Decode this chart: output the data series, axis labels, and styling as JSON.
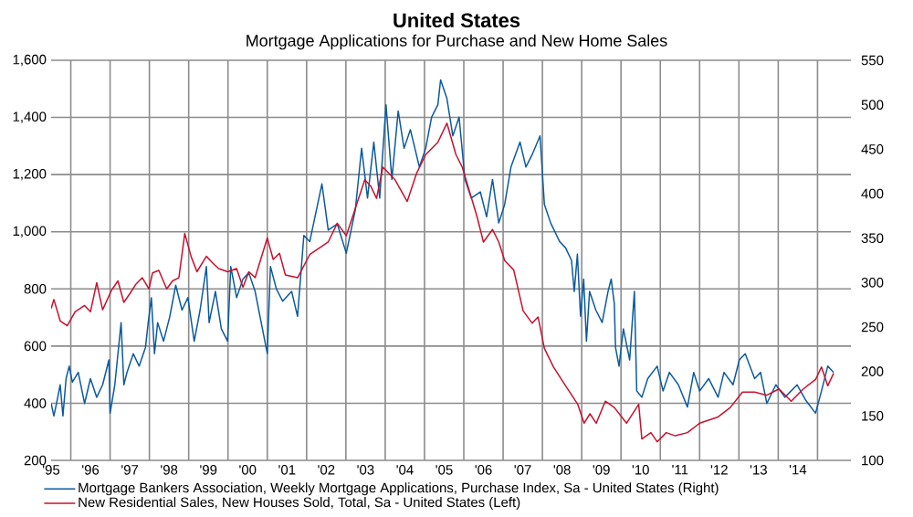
{
  "chart_data": {
    "type": "line",
    "title": "United States",
    "subtitle": "Mortgage Applications for Purchase and New Home Sales",
    "series": [
      {
        "name": "Mortgage Bankers Association, Weekly Mortgage Applications, Purchase Index, Sa - United States  (Right)",
        "color": "#0b5a9e",
        "axis": "y2",
        "x": [
          1995.0,
          1995.07,
          1995.15,
          1995.23,
          1995.3,
          1995.38,
          1995.46,
          1995.54,
          1995.69,
          1995.85,
          1996.0,
          1996.16,
          1996.31,
          1996.47,
          1996.5,
          1996.62,
          1996.78,
          1996.85,
          1996.93,
          1997.09,
          1997.24,
          1997.4,
          1997.47,
          1997.55,
          1997.63,
          1997.71,
          1997.86,
          1998.02,
          1998.17,
          1998.33,
          1998.48,
          1998.64,
          1998.79,
          1998.95,
          1999.02,
          1999.18,
          1999.33,
          1999.49,
          1999.57,
          1999.72,
          1999.88,
          2000.03,
          2000.19,
          2000.5,
          2000.58,
          2000.73,
          2000.89,
          2001.12,
          2001.27,
          2001.43,
          2001.58,
          2001.89,
          2002.05,
          2002.28,
          2002.51,
          2002.74,
          2002.9,
          2003.05,
          2003.21,
          2003.36,
          2003.52,
          2003.67,
          2003.83,
          2003.98,
          2004.14,
          2004.37,
          2004.53,
          2004.68,
          2004.84,
          2004.91,
          2005.07,
          2005.22,
          2005.38,
          2005.53,
          2005.69,
          2005.92,
          2006.08,
          2006.23,
          2006.39,
          2006.54,
          2006.7,
          2006.93,
          2007.08,
          2007.24,
          2007.44,
          2007.55,
          2007.71,
          2007.94,
          2008.09,
          2008.24,
          2008.31,
          2008.39,
          2008.47,
          2008.55,
          2008.62,
          2008.7,
          2008.86,
          2009.02,
          2009.17,
          2009.25,
          2009.33,
          2009.36,
          2009.45,
          2009.56,
          2009.72,
          2009.84,
          2009.9,
          2010.03,
          2010.18,
          2010.42,
          2010.57,
          2010.73,
          2010.96,
          2011.19,
          2011.35,
          2011.5,
          2011.73,
          2011.97,
          2012.12,
          2012.35,
          2012.51,
          2012.66,
          2012.9,
          2013.05,
          2013.21,
          2013.44,
          2013.67,
          2013.98,
          2014.21,
          2014.45,
          2014.6,
          2014.76,
          2014.91
        ],
        "values": [
          164,
          150,
          167,
          185,
          150,
          192,
          206,
          188,
          199,
          164,
          192,
          171,
          185,
          213,
          153,
          185,
          255,
          185,
          199,
          220,
          206,
          227,
          255,
          283,
          220,
          255,
          234,
          262,
          297,
          269,
          283,
          234,
          269,
          318,
          255,
          290,
          248,
          234,
          318,
          283,
          304,
          311,
          290,
          220,
          318,
          293,
          279,
          290,
          262,
          353,
          346,
          411,
          359,
          366,
          333,
          382,
          451,
          395,
          458,
          395,
          500,
          416,
          493,
          451,
          472,
          430,
          451,
          486,
          500,
          528,
          507,
          465,
          486,
          416,
          395,
          402,
          374,
          416,
          367,
          388,
          430,
          458,
          430,
          444,
          465,
          388,
          367,
          346,
          339,
          325,
          290,
          332,
          262,
          304,
          234,
          290,
          269,
          255,
          290,
          304,
          276,
          227,
          206,
          248,
          213,
          290,
          178,
          171,
          192,
          206,
          178,
          199,
          185,
          160,
          199,
          178,
          192,
          171,
          199,
          185,
          213,
          220,
          192,
          199,
          164,
          185,
          171,
          185,
          167,
          153,
          178,
          206,
          199
        ]
      },
      {
        "name": "New Residential Sales, New Houses Sold, Total, Sa - United States  (Left)",
        "color": "#c8102e",
        "x": [
          1995.0,
          1995.07,
          1995.23,
          1995.41,
          1995.61,
          1995.85,
          1996.0,
          1996.16,
          1996.31,
          1996.54,
          1996.7,
          1996.85,
          1997.01,
          1997.16,
          1997.32,
          1997.49,
          1997.58,
          1997.74,
          1997.94,
          1998.09,
          1998.25,
          1998.4,
          1998.56,
          1998.71,
          1998.95,
          1999.1,
          1999.26,
          1999.49,
          1999.72,
          1999.88,
          2000.03,
          2000.19,
          2000.5,
          2000.65,
          2000.81,
          2000.96,
          2001.27,
          2001.58,
          2002.05,
          2002.28,
          2002.51,
          2002.98,
          2003.13,
          2003.28,
          2003.44,
          2003.75,
          2004.06,
          2004.3,
          2004.53,
          2004.84,
          2005.07,
          2005.3,
          2005.46,
          2005.65,
          2005.84,
          2006.0,
          2006.23,
          2006.39,
          2006.54,
          2006.77,
          2007.01,
          2007.24,
          2007.39,
          2007.55,
          2007.78,
          2008.09,
          2008.4,
          2008.56,
          2008.71,
          2008.87,
          2009.1,
          2009.33,
          2009.64,
          2009.95,
          2010.03,
          2010.26,
          2010.42,
          2010.65,
          2010.88,
          2011.19,
          2011.5,
          2011.97,
          2012.28,
          2012.59,
          2012.9,
          2013.21,
          2013.52,
          2013.83,
          2014.14,
          2014.45,
          2014.6,
          2014.76,
          2014.91
        ],
        "values": [
          731,
          763,
          688,
          671,
          720,
          742,
          720,
          822,
          727,
          796,
          828,
          753,
          785,
          817,
          839,
          800,
          856,
          865,
          800,
          828,
          839,
          994,
          914,
          860,
          914,
          892,
          871,
          860,
          871,
          806,
          860,
          839,
          978,
          903,
          925,
          849,
          839,
          920,
          964,
          1030,
          986,
          1182,
          1160,
          1117,
          1226,
          1182,
          1106,
          1205,
          1270,
          1313,
          1380,
          1270,
          1226,
          1139,
          1051,
          964,
          1008,
          964,
          899,
          866,
          723,
          680,
          702,
          592,
          527,
          461,
          396,
          330,
          363,
          330,
          407,
          385,
          330,
          396,
          275,
          297,
          265,
          297,
          286,
          297,
          330,
          352,
          385,
          439,
          439,
          428,
          450,
          407,
          450,
          483,
          527,
          461,
          505
        ]
      }
    ],
    "xlim": [
      1995,
      2015.35
    ],
    "xticks": [
      {
        "value": 1995,
        "label": "'95"
      },
      {
        "value": 1995.5,
        "label": null
      },
      {
        "value": 1996,
        "label": "'96"
      },
      {
        "value": 1996.5,
        "label": null
      },
      {
        "value": 1997,
        "label": "'97"
      },
      {
        "value": 1997.5,
        "label": null
      },
      {
        "value": 1998,
        "label": "'98"
      },
      {
        "value": 1998.5,
        "label": null
      },
      {
        "value": 1999,
        "label": "'99"
      },
      {
        "value": 1999.5,
        "label": null
      },
      {
        "value": 2000,
        "label": "'00"
      },
      {
        "value": 2000.5,
        "label": null
      },
      {
        "value": 2001,
        "label": "'01"
      },
      {
        "value": 2001.5,
        "label": null
      },
      {
        "value": 2002,
        "label": "'02"
      },
      {
        "value": 2002.5,
        "label": null
      },
      {
        "value": 2003,
        "label": "'03"
      },
      {
        "value": 2003.5,
        "label": null
      },
      {
        "value": 2004,
        "label": "'04"
      },
      {
        "value": 2004.5,
        "label": null
      },
      {
        "value": 2005,
        "label": "'05"
      },
      {
        "value": 2005.5,
        "label": null
      },
      {
        "value": 2006,
        "label": "'06"
      },
      {
        "value": 2006.5,
        "label": null
      },
      {
        "value": 2007,
        "label": "'07"
      },
      {
        "value": 2007.5,
        "label": null
      },
      {
        "value": 2008,
        "label": "'08"
      },
      {
        "value": 2008.5,
        "label": null
      },
      {
        "value": 2009,
        "label": "'09"
      },
      {
        "value": 2009.5,
        "label": null
      },
      {
        "value": 2010,
        "label": "'10"
      },
      {
        "value": 2010.5,
        "label": null
      },
      {
        "value": 2011,
        "label": "'11"
      },
      {
        "value": 2011.5,
        "label": null
      },
      {
        "value": 2012,
        "label": "'12"
      },
      {
        "value": 2012.5,
        "label": null
      },
      {
        "value": 2013,
        "label": "'13"
      },
      {
        "value": 2013.5,
        "label": null
      },
      {
        "value": 2014,
        "label": "'14"
      },
      {
        "value": 2014.5,
        "label": null
      }
    ],
    "ylim": [
      200,
      1600
    ],
    "yticks": [
      200,
      400,
      600,
      800,
      {
        "value": 1000,
        "label": "1,000"
      },
      {
        "value": 1200,
        "label": "1,200"
      },
      {
        "value": 1400,
        "label": "1,400"
      },
      {
        "value": 1600,
        "label": "1,600"
      }
    ],
    "y2lim": [
      100,
      550
    ],
    "y2ticks": [
      100,
      150,
      200,
      250,
      300,
      350,
      400,
      450,
      500,
      550
    ],
    "grid": true,
    "legend": "bottom",
    "marker": "none",
    "line_style": "solid"
  }
}
